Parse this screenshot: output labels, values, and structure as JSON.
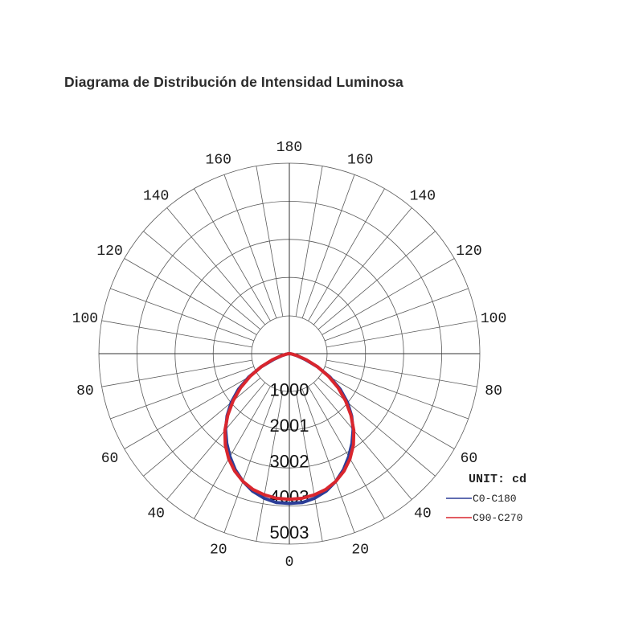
{
  "title": "Diagrama de Distribución de Intensidad Luminosa",
  "chart_data": {
    "type": "polar-line",
    "unit_label": "UNIT: cd",
    "radial_ticks": [
      1000,
      2001,
      3002,
      4003,
      5003
    ],
    "r_max": 5003,
    "angle_ticks_left": [
      "180",
      "160",
      "140",
      "120",
      "100",
      "80",
      "60",
      "40",
      "20",
      "0"
    ],
    "angle_ticks_right": [
      "160",
      "140",
      "120",
      "100",
      "80",
      "60",
      "40",
      "20"
    ],
    "angle_tick_values_left": [
      180,
      160,
      140,
      120,
      100,
      80,
      60,
      40,
      20,
      0
    ],
    "angle_tick_values_right": [
      160,
      140,
      120,
      100,
      80,
      60,
      40,
      20
    ],
    "grid": true,
    "legend_position": "bottom-right",
    "gamma": [
      0,
      5,
      10,
      15,
      20,
      25,
      30,
      35,
      40,
      45,
      50,
      55,
      60,
      65,
      70,
      75,
      80,
      85,
      90
    ],
    "series": [
      {
        "name": "C0-C180",
        "color": "#2b3d97",
        "intensity": [
          4200,
          4190,
          4110,
          3990,
          3810,
          3590,
          3330,
          3060,
          2780,
          2470,
          2130,
          1740,
          1310,
          860,
          460,
          220,
          90,
          30,
          0
        ]
      },
      {
        "name": "C90-C270",
        "color": "#d9262e",
        "intensity": [
          4080,
          4070,
          4020,
          3940,
          3810,
          3630,
          3400,
          3130,
          2810,
          2440,
          2060,
          1670,
          1270,
          870,
          510,
          250,
          100,
          30,
          0
        ]
      }
    ]
  }
}
